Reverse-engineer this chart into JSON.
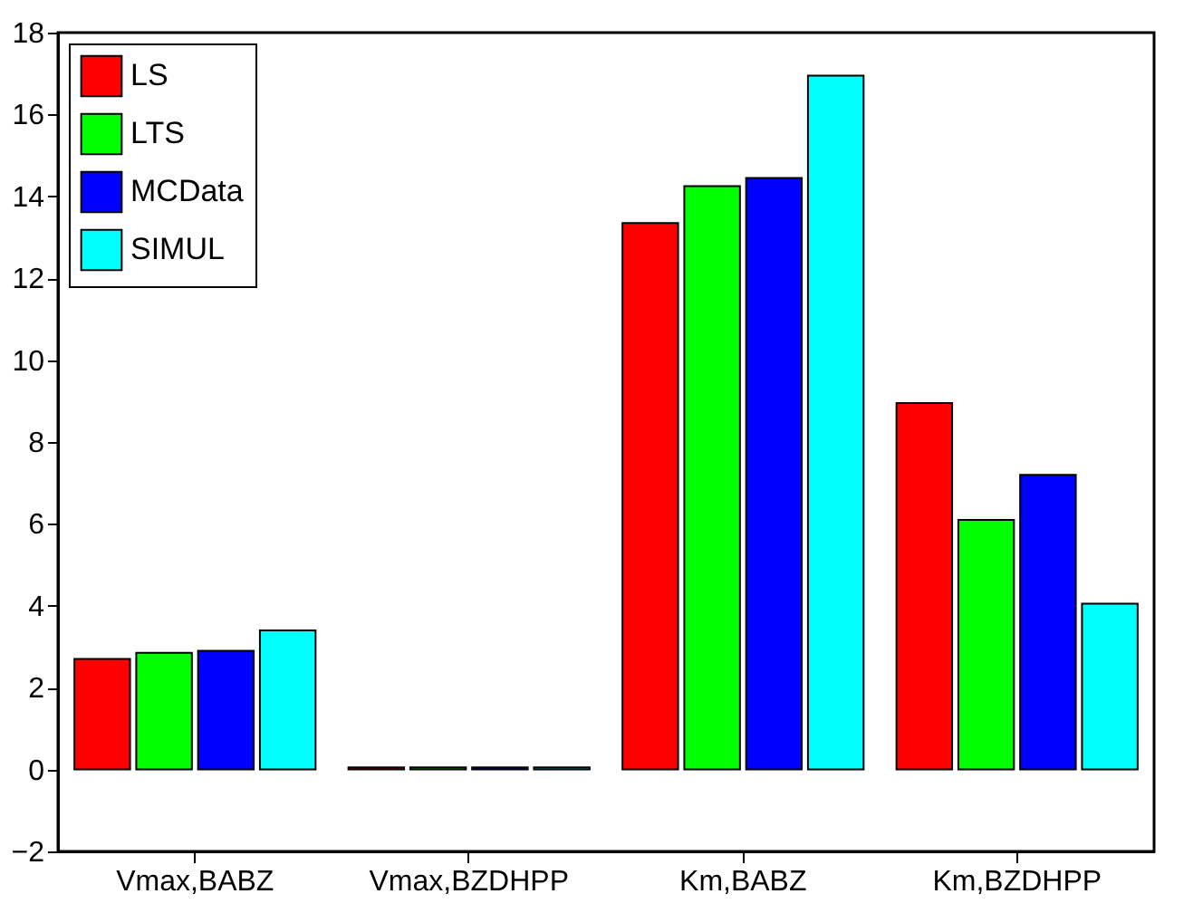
{
  "chart_data": {
    "type": "bar",
    "categories": [
      "Vmax,BABZ",
      "Vmax,BZDHPP",
      "Km,BABZ",
      "Km,BZDHPP"
    ],
    "series": [
      {
        "name": "LS",
        "color": "#ff0000",
        "values": [
          2.7,
          0.05,
          13.35,
          8.95
        ]
      },
      {
        "name": "LTS",
        "color": "#00ff00",
        "values": [
          2.85,
          0.05,
          14.25,
          6.1
        ]
      },
      {
        "name": "MCData",
        "color": "#0000ff",
        "values": [
          2.9,
          0.05,
          14.45,
          7.2
        ]
      },
      {
        "name": "SIMUL",
        "color": "#00ffff",
        "values": [
          3.4,
          0.05,
          16.95,
          4.05
        ]
      }
    ],
    "ylim": [
      -2,
      18
    ],
    "yticks": [
      -2,
      0,
      2,
      4,
      6,
      8,
      10,
      12,
      14,
      16,
      18
    ],
    "grid": false,
    "legend": "top left"
  }
}
